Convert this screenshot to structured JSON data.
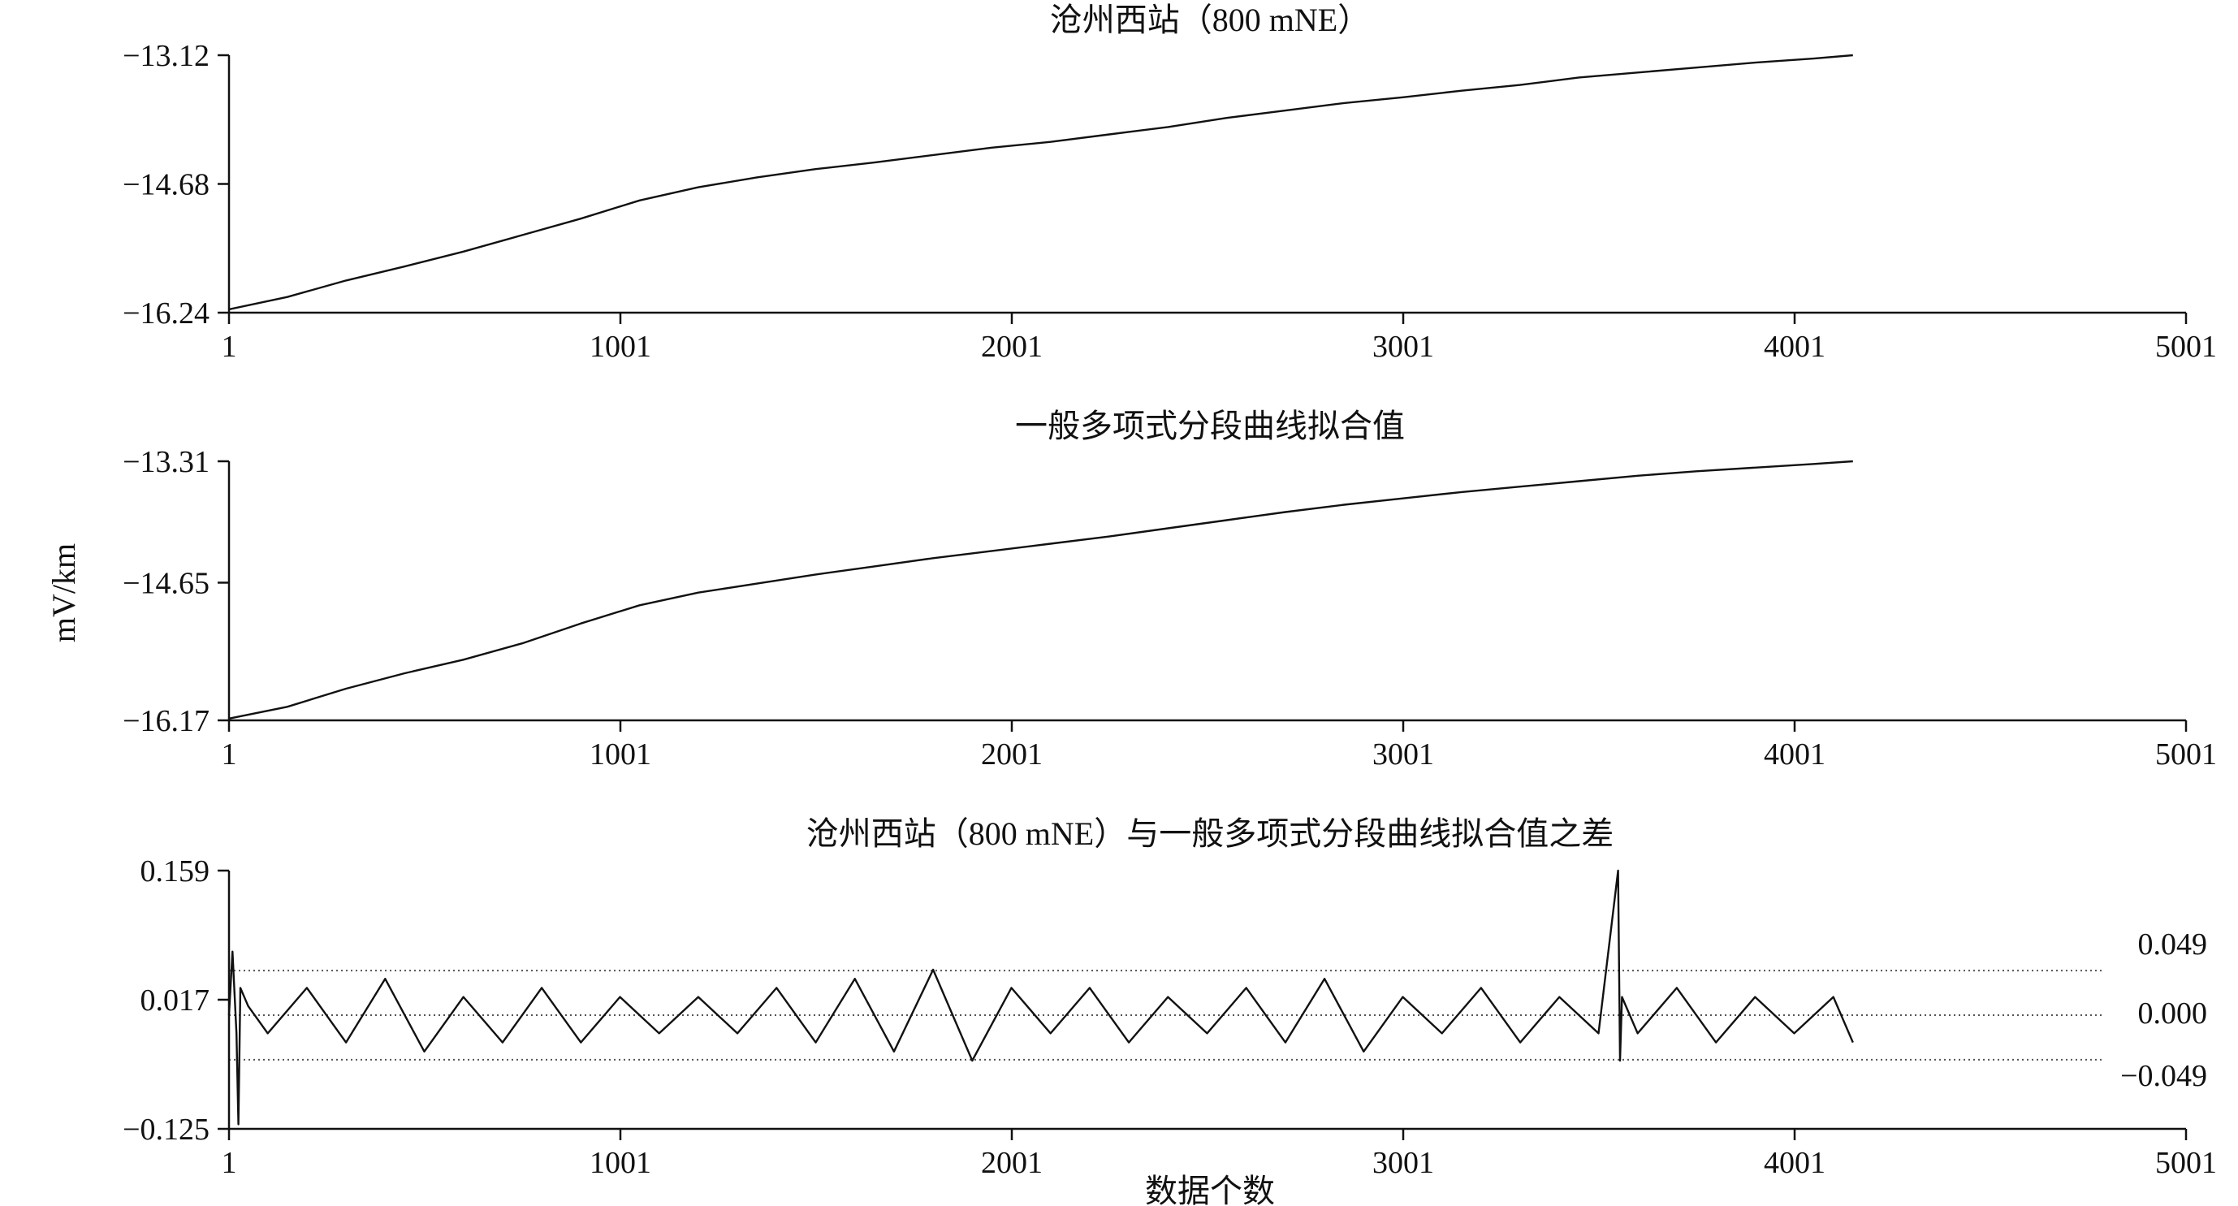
{
  "chart_data": [
    {
      "type": "line",
      "title": "沧州西站（800 mNE）",
      "xlabel": "",
      "ylabel": "",
      "xlim": [
        1,
        5001
      ],
      "ylim": [
        -16.24,
        -13.12
      ],
      "x_ticks": [
        "1",
        "1001",
        "2001",
        "3001",
        "4001",
        "5001"
      ],
      "y_ticks": [
        {
          "value": -13.12,
          "label": "−13.12"
        },
        {
          "value": -14.68,
          "label": "−14.68"
        },
        {
          "value": -16.24,
          "label": "−16.24"
        }
      ],
      "series": [
        {
          "x": [
            1,
            150,
            300,
            450,
            600,
            750,
            900,
            1050,
            1200,
            1350,
            1500,
            1650,
            1800,
            1950,
            2100,
            2250,
            2400,
            2550,
            2700,
            2850,
            3000,
            3150,
            3300,
            3450,
            3600,
            3750,
            3900,
            4050,
            4150
          ],
          "values": [
            -16.2,
            -16.05,
            -15.85,
            -15.68,
            -15.5,
            -15.3,
            -15.1,
            -14.88,
            -14.72,
            -14.6,
            -14.5,
            -14.42,
            -14.33,
            -14.24,
            -14.17,
            -14.08,
            -13.99,
            -13.88,
            -13.79,
            -13.7,
            -13.63,
            -13.55,
            -13.48,
            -13.39,
            -13.33,
            -13.27,
            -13.21,
            -13.16,
            -13.12
          ]
        }
      ],
      "color": "#111111"
    },
    {
      "type": "line",
      "title": "一般多项式分段曲线拟合值",
      "xlabel": "",
      "ylabel": "mV/km",
      "xlim": [
        1,
        5001
      ],
      "ylim": [
        -16.17,
        -13.31
      ],
      "x_ticks": [
        "1",
        "1001",
        "2001",
        "3001",
        "4001",
        "5001"
      ],
      "y_ticks": [
        {
          "value": -13.31,
          "label": "−13.31"
        },
        {
          "value": -14.65,
          "label": "−14.65"
        },
        {
          "value": -16.17,
          "label": "−16.17"
        }
      ],
      "series": [
        {
          "x": [
            1,
            150,
            300,
            450,
            600,
            750,
            900,
            1050,
            1200,
            1350,
            1500,
            1650,
            1800,
            1950,
            2100,
            2250,
            2400,
            2550,
            2700,
            2850,
            3000,
            3150,
            3300,
            3450,
            3600,
            3750,
            3900,
            4050,
            4150
          ],
          "values": [
            -16.15,
            -16.02,
            -15.82,
            -15.65,
            -15.5,
            -15.32,
            -15.1,
            -14.9,
            -14.76,
            -14.66,
            -14.56,
            -14.47,
            -14.38,
            -14.3,
            -14.22,
            -14.14,
            -14.05,
            -13.96,
            -13.87,
            -13.79,
            -13.72,
            -13.65,
            -13.59,
            -13.53,
            -13.47,
            -13.42,
            -13.38,
            -13.34,
            -13.31
          ]
        }
      ],
      "color": "#111111"
    },
    {
      "type": "line",
      "title": "沧州西站（800 mNE）与一般多项式分段曲线拟合值之差",
      "xlabel": "数据个数",
      "ylabel": "",
      "xlim": [
        1,
        5001
      ],
      "ylim": [
        -0.125,
        0.159
      ],
      "x_ticks": [
        "1",
        "1001",
        "2001",
        "3001",
        "4001",
        "5001"
      ],
      "y_ticks": [
        {
          "value": 0.159,
          "label": "0.159"
        },
        {
          "value": 0.017,
          "label": "0.017"
        },
        {
          "value": -0.125,
          "label": "−0.125"
        }
      ],
      "reference_lines": [
        {
          "value": 0.049,
          "label": "0.049"
        },
        {
          "value": 0.0,
          "label": "0.000"
        },
        {
          "value": -0.049,
          "label": "−0.049"
        }
      ],
      "series": [
        {
          "x": [
            1,
            10,
            20,
            25,
            30,
            50,
            100,
            200,
            300,
            400,
            500,
            600,
            700,
            800,
            900,
            1000,
            1100,
            1200,
            1300,
            1400,
            1500,
            1600,
            1700,
            1800,
            1900,
            2000,
            2100,
            2200,
            2300,
            2400,
            2500,
            2600,
            2700,
            2800,
            2900,
            3000,
            3100,
            3200,
            3300,
            3400,
            3500,
            3550,
            3555,
            3560,
            3600,
            3700,
            3800,
            3900,
            4000,
            4100,
            4150
          ],
          "values": [
            0.0,
            0.07,
            -0.02,
            -0.12,
            0.03,
            0.01,
            -0.02,
            0.03,
            -0.03,
            0.04,
            -0.04,
            0.02,
            -0.03,
            0.03,
            -0.03,
            0.02,
            -0.02,
            0.02,
            -0.02,
            0.03,
            -0.03,
            0.04,
            -0.04,
            0.05,
            -0.05,
            0.03,
            -0.02,
            0.03,
            -0.03,
            0.02,
            -0.02,
            0.03,
            -0.03,
            0.04,
            -0.04,
            0.02,
            -0.02,
            0.03,
            -0.03,
            0.02,
            -0.02,
            0.159,
            -0.05,
            0.02,
            -0.02,
            0.03,
            -0.03,
            0.02,
            -0.02,
            0.02,
            -0.03
          ]
        }
      ],
      "color": "#111111"
    }
  ]
}
